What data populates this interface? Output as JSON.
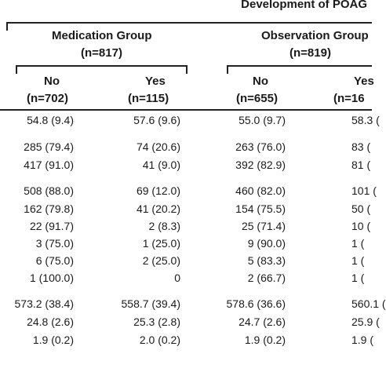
{
  "header": {
    "top_title": "Development of POAG",
    "groups": [
      {
        "name": "Medication Group",
        "n": "(n=817)"
      },
      {
        "name": "Observation Group",
        "n": "(n=819)"
      }
    ],
    "columns": [
      {
        "label": "No",
        "n": "(n=702)"
      },
      {
        "label": "Yes",
        "n": "(n=115)"
      },
      {
        "label": "No",
        "n": "(n=655)"
      },
      {
        "label": "Yes",
        "n": "(n=16"
      }
    ]
  },
  "rows": [
    [
      "54.8 (9.4)",
      "57.6 (9.6)",
      "55.0 (9.7)",
      "58.3 ("
    ],
    [
      "285 (79.4)",
      "74 (20.6)",
      "263 (76.0)",
      "83 ("
    ],
    [
      "417 (91.0)",
      "41 (9.0)",
      "392 (82.9)",
      "81 ("
    ],
    [
      "508 (88.0)",
      "69 (12.0)",
      "460 (82.0)",
      "101 ("
    ],
    [
      "162 (79.8)",
      "41 (20.2)",
      "154 (75.5)",
      "50 ("
    ],
    [
      "22 (91.7)",
      "2 (8.3)",
      "25 (71.4)",
      "10 ("
    ],
    [
      "3 (75.0)",
      "1 (25.0)",
      "9 (90.0)",
      "1 ("
    ],
    [
      "6 (75.0)",
      "2 (25.0)",
      "5 (83.3)",
      "1 ("
    ],
    [
      "1 (100.0)",
      "0",
      "2 (66.7)",
      "1 ("
    ],
    [
      "573.2 (38.4)",
      "558.7 (39.4)",
      "578.6 (36.6)",
      "560.1 ("
    ],
    [
      "24.8 (2.6)",
      "25.3 (2.8)",
      "24.7 (2.6)",
      "25.9 ("
    ],
    [
      "1.9 (0.2)",
      "2.0 (0.2)",
      "1.9 (0.2)",
      "1.9 ("
    ]
  ]
}
